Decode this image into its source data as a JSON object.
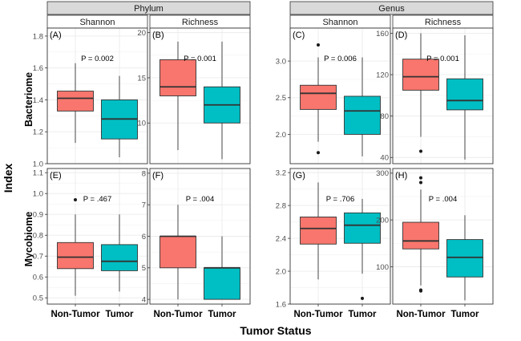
{
  "figure": {
    "y_title": "Index",
    "x_title": "Tumor Status",
    "categories": [
      "Non-Tumor",
      "Tumor"
    ],
    "colors": {
      "Non-Tumor": "#f8766d",
      "Tumor": "#00bfc4"
    }
  },
  "groups": [
    {
      "label": "Phylum",
      "columns": [
        0,
        1
      ]
    },
    {
      "label": "Genus",
      "columns": [
        2,
        3
      ]
    }
  ],
  "columns": [
    "Shannon",
    "Richness",
    "Shannon",
    "Richness"
  ],
  "rows": [
    "Bacteriome",
    "Mycobiome"
  ],
  "chart_data": [
    {
      "type": "boxplot",
      "panel": "(A)",
      "row": "Bacteriome",
      "group": "Phylum",
      "metric": "Shannon",
      "p_value": "P = 0.002",
      "ylim": [
        1.0,
        1.85
      ],
      "ticks": [
        1.0,
        1.2,
        1.4,
        1.6,
        1.8
      ],
      "tick_labels": [
        "1.0",
        "1.2",
        "1.4",
        "1.6",
        "1.8"
      ],
      "boxes": [
        {
          "category": "Non-Tumor",
          "min": 1.13,
          "q1": 1.33,
          "median": 1.41,
          "q3": 1.455,
          "max": 1.63,
          "outliers": []
        },
        {
          "category": "Tumor",
          "min": 1.04,
          "q1": 1.155,
          "median": 1.28,
          "q3": 1.4,
          "max": 1.55,
          "outliers": []
        }
      ]
    },
    {
      "type": "boxplot",
      "panel": "(B)",
      "row": "Bacteriome",
      "group": "Phylum",
      "metric": "Richness",
      "p_value": "P = 0.001",
      "ylim": [
        5.5,
        20.5
      ],
      "ticks": [
        10,
        15,
        20
      ],
      "tick_labels": [
        "10",
        "15",
        "20"
      ],
      "boxes": [
        {
          "category": "Non-Tumor",
          "min": 7,
          "q1": 13,
          "median": 14,
          "q3": 17,
          "max": 19,
          "outliers": []
        },
        {
          "category": "Tumor",
          "min": 6,
          "q1": 10,
          "median": 12,
          "q3": 14,
          "max": 19,
          "outliers": []
        }
      ]
    },
    {
      "type": "boxplot",
      "panel": "(C)",
      "row": "Bacteriome",
      "group": "Genus",
      "metric": "Shannon",
      "p_value": "P = 0.006",
      "ylim": [
        1.6,
        3.45
      ],
      "ticks": [
        2.0,
        2.5,
        3.0
      ],
      "tick_labels": [
        "2.0",
        "2.5",
        "3.0"
      ],
      "boxes": [
        {
          "category": "Non-Tumor",
          "min": 1.9,
          "q1": 2.34,
          "median": 2.56,
          "q3": 2.67,
          "max": 3.05,
          "outliers": [
            3.22,
            1.75
          ]
        },
        {
          "category": "Tumor",
          "min": 1.7,
          "q1": 2.0,
          "median": 2.32,
          "q3": 2.52,
          "max": 3.05,
          "outliers": []
        }
      ]
    },
    {
      "type": "boxplot",
      "panel": "(D)",
      "row": "Bacteriome",
      "group": "Genus",
      "metric": "Richness",
      "p_value": "P = 0.001",
      "ylim": [
        34,
        165
      ],
      "ticks": [
        40,
        80,
        120,
        160
      ],
      "tick_labels": [
        "40",
        "80",
        "120",
        "160"
      ],
      "boxes": [
        {
          "category": "Non-Tumor",
          "min": 60,
          "q1": 105,
          "median": 118,
          "q3": 135,
          "max": 160,
          "outliers": [
            46
          ]
        },
        {
          "category": "Tumor",
          "min": 38,
          "q1": 86,
          "median": 95,
          "q3": 116,
          "max": 158,
          "outliers": []
        }
      ]
    },
    {
      "type": "boxplot",
      "panel": "(E)",
      "row": "Mycobiome",
      "group": "Phylum",
      "metric": "Shannon",
      "p_value": "P = .467",
      "ylim": [
        0.47,
        1.12
      ],
      "ticks": [
        0.5,
        0.6,
        0.7,
        0.8,
        0.9,
        1.0,
        1.1
      ],
      "tick_labels": [
        "0.5",
        "0.6",
        "0.7",
        "0.8",
        "0.9",
        "1.0",
        "1.1"
      ],
      "boxes": [
        {
          "category": "Non-Tumor",
          "min": 0.51,
          "q1": 0.64,
          "median": 0.695,
          "q3": 0.765,
          "max": 0.9,
          "outliers": [
            0.97
          ]
        },
        {
          "category": "Tumor",
          "min": 0.53,
          "q1": 0.63,
          "median": 0.675,
          "q3": 0.755,
          "max": 0.9,
          "outliers": []
        }
      ]
    },
    {
      "type": "boxplot",
      "panel": "(F)",
      "row": "Mycobiome",
      "group": "Phylum",
      "metric": "Richness",
      "p_value": "P = .004",
      "ylim": [
        3.85,
        8.15
      ],
      "ticks": [
        4,
        5,
        6,
        7,
        8
      ],
      "tick_labels": [
        "4",
        "5",
        "6",
        "7",
        "8"
      ],
      "boxes": [
        {
          "category": "Non-Tumor",
          "min": 4,
          "q1": 5,
          "median": 6,
          "q3": 6,
          "max": 7,
          "outliers": []
        },
        {
          "category": "Tumor",
          "min": 4,
          "q1": 4,
          "median": 5,
          "q3": 5,
          "max": 6,
          "outliers": []
        }
      ]
    },
    {
      "type": "boxplot",
      "panel": "(G)",
      "row": "Mycobiome",
      "group": "Genus",
      "metric": "Shannon",
      "p_value": "P = .706",
      "ylim": [
        1.6,
        3.25
      ],
      "ticks": [
        1.6,
        2.0,
        2.4,
        2.8,
        3.2
      ],
      "tick_labels": [
        "1.6",
        "2.0",
        "2.4",
        "2.8",
        "3.2"
      ],
      "boxes": [
        {
          "category": "Non-Tumor",
          "min": 1.9,
          "q1": 2.33,
          "median": 2.52,
          "q3": 2.66,
          "max": 3.08,
          "outliers": []
        },
        {
          "category": "Tumor",
          "min": 1.97,
          "q1": 2.34,
          "median": 2.56,
          "q3": 2.71,
          "max": 2.88,
          "outliers": [
            1.67
          ]
        }
      ]
    },
    {
      "type": "boxplot",
      "panel": "(H)",
      "row": "Mycobiome",
      "group": "Genus",
      "metric": "Richness",
      "p_value": "P = .004",
      "ylim": [
        20,
        310
      ],
      "ticks": [
        100,
        200,
        300
      ],
      "tick_labels": [
        "100",
        "200",
        "300"
      ],
      "boxes": [
        {
          "category": "Non-Tumor",
          "min": 60,
          "q1": 138,
          "median": 155,
          "q3": 195,
          "max": 265,
          "outliers": [
            290,
            280,
            50,
            48
          ]
        },
        {
          "category": "Tumor",
          "min": 28,
          "q1": 78,
          "median": 120,
          "q3": 158,
          "max": 210,
          "outliers": []
        }
      ]
    }
  ]
}
